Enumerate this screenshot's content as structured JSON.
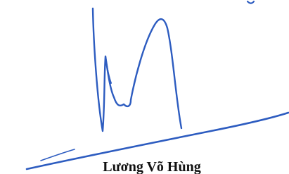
{
  "signature": {
    "name": "Lương Võ Hùng"
  }
}
